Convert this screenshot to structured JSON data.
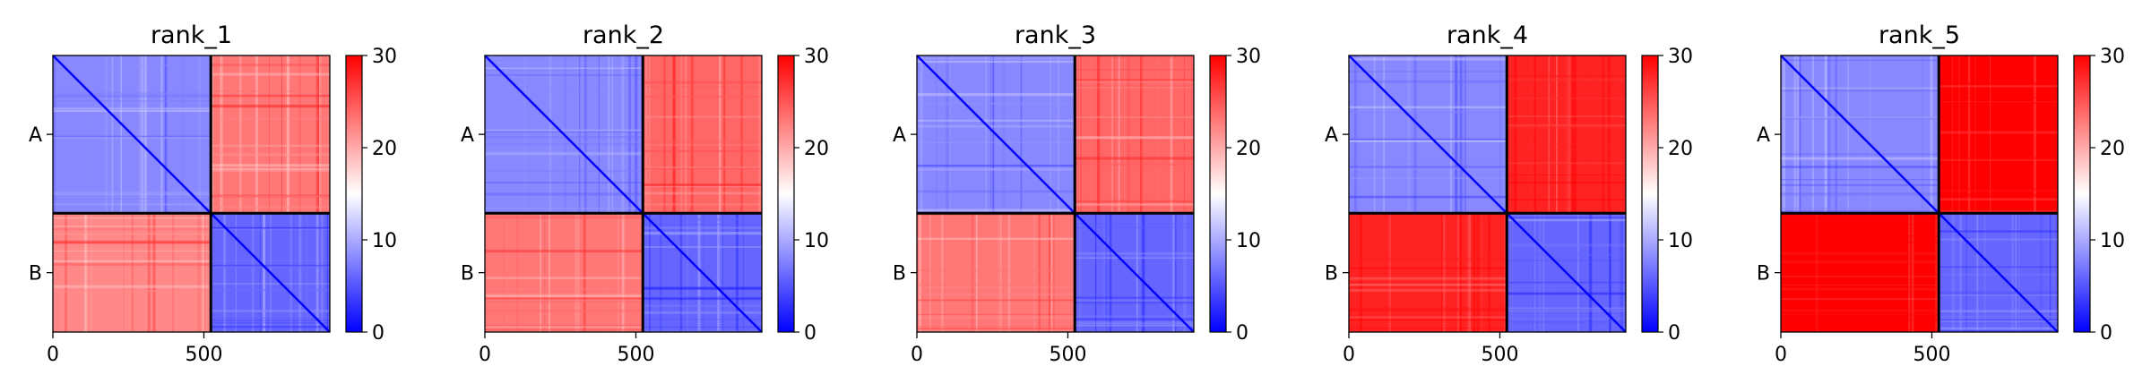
{
  "figure": {
    "colormap": {
      "low": "#0000ff",
      "mid": "#ffffff",
      "high": "#ff0000",
      "vmin": 0,
      "vmax": 30
    }
  },
  "chart_data": [
    {
      "type": "heatmap",
      "title": "rank_1",
      "x_ticks": [
        "0",
        "500"
      ],
      "y_ticks": [
        "A",
        "B"
      ],
      "colorbar_ticks": [
        "0",
        "10",
        "20",
        "30"
      ],
      "xlim": [
        0,
        917
      ],
      "ylim": [
        917,
        0
      ],
      "clim": [
        0,
        30
      ],
      "chain_boundary": 523,
      "blocks": {
        "A-A": 8,
        "A-B": 23,
        "B-A": 22,
        "B-B": 6
      },
      "grid": false
    },
    {
      "type": "heatmap",
      "title": "rank_2",
      "x_ticks": [
        "0",
        "500"
      ],
      "y_ticks": [
        "A",
        "B"
      ],
      "colorbar_ticks": [
        "0",
        "10",
        "20",
        "30"
      ],
      "xlim": [
        0,
        917
      ],
      "ylim": [
        917,
        0
      ],
      "clim": [
        0,
        30
      ],
      "chain_boundary": 523,
      "blocks": {
        "A-A": 8,
        "A-B": 24,
        "B-A": 23,
        "B-B": 6
      },
      "grid": false
    },
    {
      "type": "heatmap",
      "title": "rank_3",
      "x_ticks": [
        "0",
        "500"
      ],
      "y_ticks": [
        "A",
        "B"
      ],
      "colorbar_ticks": [
        "0",
        "10",
        "20",
        "30"
      ],
      "xlim": [
        0,
        917
      ],
      "ylim": [
        917,
        0
      ],
      "clim": [
        0,
        30
      ],
      "chain_boundary": 523,
      "blocks": {
        "A-A": 8,
        "A-B": 24,
        "B-A": 23,
        "B-B": 6
      },
      "grid": false
    },
    {
      "type": "heatmap",
      "title": "rank_4",
      "x_ticks": [
        "0",
        "500"
      ],
      "y_ticks": [
        "A",
        "B"
      ],
      "colorbar_ticks": [
        "0",
        "10",
        "20",
        "30"
      ],
      "xlim": [
        0,
        917
      ],
      "ylim": [
        917,
        0
      ],
      "clim": [
        0,
        30
      ],
      "chain_boundary": 523,
      "blocks": {
        "A-A": 8,
        "A-B": 28,
        "B-A": 28,
        "B-B": 6
      },
      "grid": false
    },
    {
      "type": "heatmap",
      "title": "rank_5",
      "x_ticks": [
        "0",
        "500"
      ],
      "y_ticks": [
        "A",
        "B"
      ],
      "colorbar_ticks": [
        "0",
        "10",
        "20",
        "30"
      ],
      "xlim": [
        0,
        917
      ],
      "ylim": [
        917,
        0
      ],
      "clim": [
        0,
        30
      ],
      "chain_boundary": 523,
      "blocks": {
        "A-A": 8,
        "A-B": 30,
        "B-A": 30,
        "B-B": 6
      },
      "grid": false
    }
  ]
}
